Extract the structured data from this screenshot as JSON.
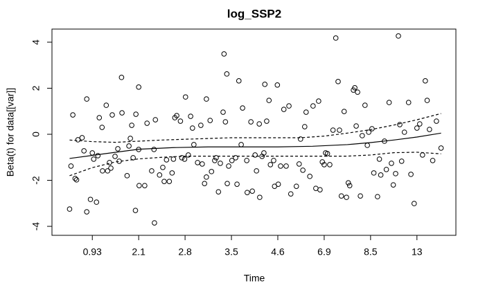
{
  "chart_data": {
    "type": "scatter",
    "title": "log_SSP2",
    "x_label": "Time",
    "y_label": "Beta(t) for data[[var]]",
    "xlim": [
      0.13,
      8.84
    ],
    "ylim": [
      -4.39,
      4.57
    ],
    "xticks": [
      {
        "value": 1,
        "label": "0.93"
      },
      {
        "value": 2,
        "label": "2.1"
      },
      {
        "value": 3,
        "label": "2.8"
      },
      {
        "value": 4,
        "label": "3.5"
      },
      {
        "value": 5,
        "label": "4.6"
      },
      {
        "value": 6,
        "label": "6.9"
      },
      {
        "value": 7,
        "label": "8.5"
      },
      {
        "value": 8,
        "label": "13"
      }
    ],
    "yticks": [
      -4,
      -2,
      0,
      2,
      4
    ],
    "series": [
      {
        "style": "points",
        "color": "#000000",
        "x": [
          0.51,
          0.54,
          0.58,
          0.63,
          0.66,
          0.69,
          0.78,
          0.82,
          0.88,
          0.88,
          0.96,
          1.0,
          1.03,
          1.09,
          1.12,
          1.15,
          1.21,
          1.22,
          1.3,
          1.33,
          1.37,
          1.4,
          1.43,
          1.49,
          1.55,
          1.58,
          1.63,
          1.64,
          1.75,
          1.79,
          1.82,
          1.85,
          1.88,
          1.93,
          1.94,
          2.0,
          2.0,
          2.01,
          2.13,
          2.18,
          2.28,
          2.33,
          2.34,
          2.36,
          2.45,
          2.52,
          2.55,
          2.6,
          2.66,
          2.72,
          2.75,
          2.78,
          2.82,
          2.9,
          2.93,
          2.99,
          3.01,
          3.07,
          3.12,
          3.16,
          3.19,
          3.27,
          3.34,
          3.37,
          3.42,
          3.46,
          3.46,
          3.54,
          3.57,
          3.64,
          3.67,
          3.72,
          3.76,
          3.82,
          3.84,
          3.87,
          3.9,
          3.91,
          3.94,
          4.01,
          4.09,
          4.12,
          4.16,
          4.21,
          4.24,
          4.33,
          4.34,
          4.42,
          4.45,
          4.51,
          4.54,
          4.6,
          4.61,
          4.66,
          4.7,
          4.72,
          4.76,
          4.81,
          4.84,
          4.91,
          4.93,
          4.99,
          5.01,
          5.06,
          5.13,
          5.18,
          5.24,
          5.28,
          5.4,
          5.46,
          5.49,
          5.54,
          5.58,
          5.61,
          5.69,
          5.76,
          5.82,
          5.88,
          5.91,
          5.96,
          6.0,
          6.03,
          6.07,
          6.12,
          6.19,
          6.25,
          6.3,
          6.33,
          6.37,
          6.43,
          6.48,
          6.52,
          6.55,
          6.63,
          6.66,
          6.69,
          6.72,
          6.78,
          6.82,
          6.88,
          6.93,
          6.96,
          7.03,
          7.07,
          7.15,
          7.19,
          7.22,
          7.3,
          7.34,
          7.4,
          7.45,
          7.49,
          7.54,
          7.6,
          7.63,
          7.67,
          7.73,
          7.82,
          7.87,
          7.94,
          8.0,
          8.06,
          8.12,
          8.18,
          8.22,
          8.27,
          8.34,
          8.42,
          8.52
        ],
        "values": [
          -3.25,
          -1.38,
          0.84,
          -1.92,
          -1.98,
          -0.24,
          -0.15,
          -0.72,
          1.53,
          -3.37,
          -2.83,
          -0.81,
          -1.08,
          -2.95,
          -0.93,
          0.72,
          0.3,
          -1.59,
          1.26,
          -1.59,
          -1.23,
          -1.47,
          0.84,
          -0.96,
          -0.63,
          -1.17,
          2.47,
          0.93,
          -1.8,
          -0.51,
          -0.18,
          0.39,
          -1.02,
          -3.31,
          0.87,
          2.05,
          -0.66,
          -2.23,
          -2.23,
          0.48,
          -1.59,
          -0.66,
          -3.85,
          0.63,
          -1.77,
          -1.44,
          -2.05,
          -1.11,
          -2.05,
          -1.68,
          -1.08,
          0.72,
          0.81,
          0.57,
          -1.02,
          -1.08,
          1.62,
          -0.9,
          0.78,
          0.27,
          -0.45,
          -1.23,
          0.39,
          -1.29,
          -2.14,
          -1.86,
          1.53,
          0.6,
          -1.62,
          -1.14,
          -1.02,
          -2.5,
          -1.26,
          0.96,
          3.49,
          0.54,
          2.62,
          -2.14,
          -1.38,
          -1.14,
          -1.02,
          -2.17,
          2.32,
          -0.45,
          1.14,
          -1.14,
          -2.53,
          0.54,
          -2.47,
          -0.9,
          -1.59,
          0.45,
          -2.74,
          -0.96,
          -0.81,
          2.17,
          0.57,
          1.47,
          -1.32,
          -1.14,
          -2.26,
          2.14,
          -2.17,
          -1.38,
          1.08,
          -1.38,
          1.23,
          -2.59,
          -2.26,
          -1.29,
          -0.21,
          -1.56,
          0.33,
          0.96,
          -1.83,
          1.23,
          -2.35,
          1.44,
          -2.41,
          -1.2,
          -1.32,
          -0.81,
          -0.84,
          -1.32,
          0.18,
          4.18,
          2.29,
          0.18,
          -2.68,
          0.99,
          -2.74,
          -2.11,
          -2.23,
          1.92,
          2.02,
          0.36,
          1.83,
          -2.68,
          -0.06,
          1.26,
          -0.48,
          0.09,
          0.24,
          -1.68,
          -2.71,
          -1.08,
          -1.77,
          -0.3,
          -1.53,
          1.38,
          -1.26,
          -2.2,
          -1.71,
          4.27,
          0.42,
          -1.17,
          0.09,
          1.38,
          -1.74,
          -3.01,
          0.27,
          0.45,
          -0.9,
          2.32,
          1.47,
          0.21,
          -1.14,
          0.57,
          -0.6
        ]
      },
      {
        "style": "solid",
        "color": "#000000",
        "x": [
          0.51,
          1.25,
          2.0,
          2.75,
          3.5,
          4.25,
          5.0,
          5.75,
          6.5,
          7.0,
          7.5,
          8.0,
          8.52
        ],
        "values": [
          -1.05,
          -0.85,
          -0.65,
          -0.58,
          -0.55,
          -0.55,
          -0.55,
          -0.52,
          -0.45,
          -0.36,
          -0.25,
          -0.12,
          0.05
        ]
      },
      {
        "style": "dashed",
        "color": "#000000",
        "x": [
          0.51,
          1.0,
          1.5,
          2.0,
          2.5,
          3.25,
          4.0,
          4.75,
          5.5,
          6.0,
          6.5,
          7.0,
          7.5,
          8.0,
          8.52
        ],
        "values": [
          -0.25,
          -0.32,
          -0.35,
          -0.3,
          -0.25,
          -0.2,
          -0.15,
          -0.15,
          -0.15,
          -0.08,
          0.05,
          0.2,
          0.4,
          0.63,
          0.9
        ]
      },
      {
        "style": "dashed",
        "color": "#000000",
        "x": [
          0.51,
          1.0,
          1.5,
          2.0,
          2.5,
          3.0,
          4.0,
          5.0,
          6.0,
          6.5,
          7.0,
          7.5,
          8.0,
          8.52
        ],
        "values": [
          -1.8,
          -1.45,
          -1.2,
          -1.07,
          -1.0,
          -0.95,
          -0.95,
          -0.95,
          -0.95,
          -0.95,
          -0.9,
          -0.8,
          -0.78,
          -0.85
        ]
      }
    ]
  }
}
